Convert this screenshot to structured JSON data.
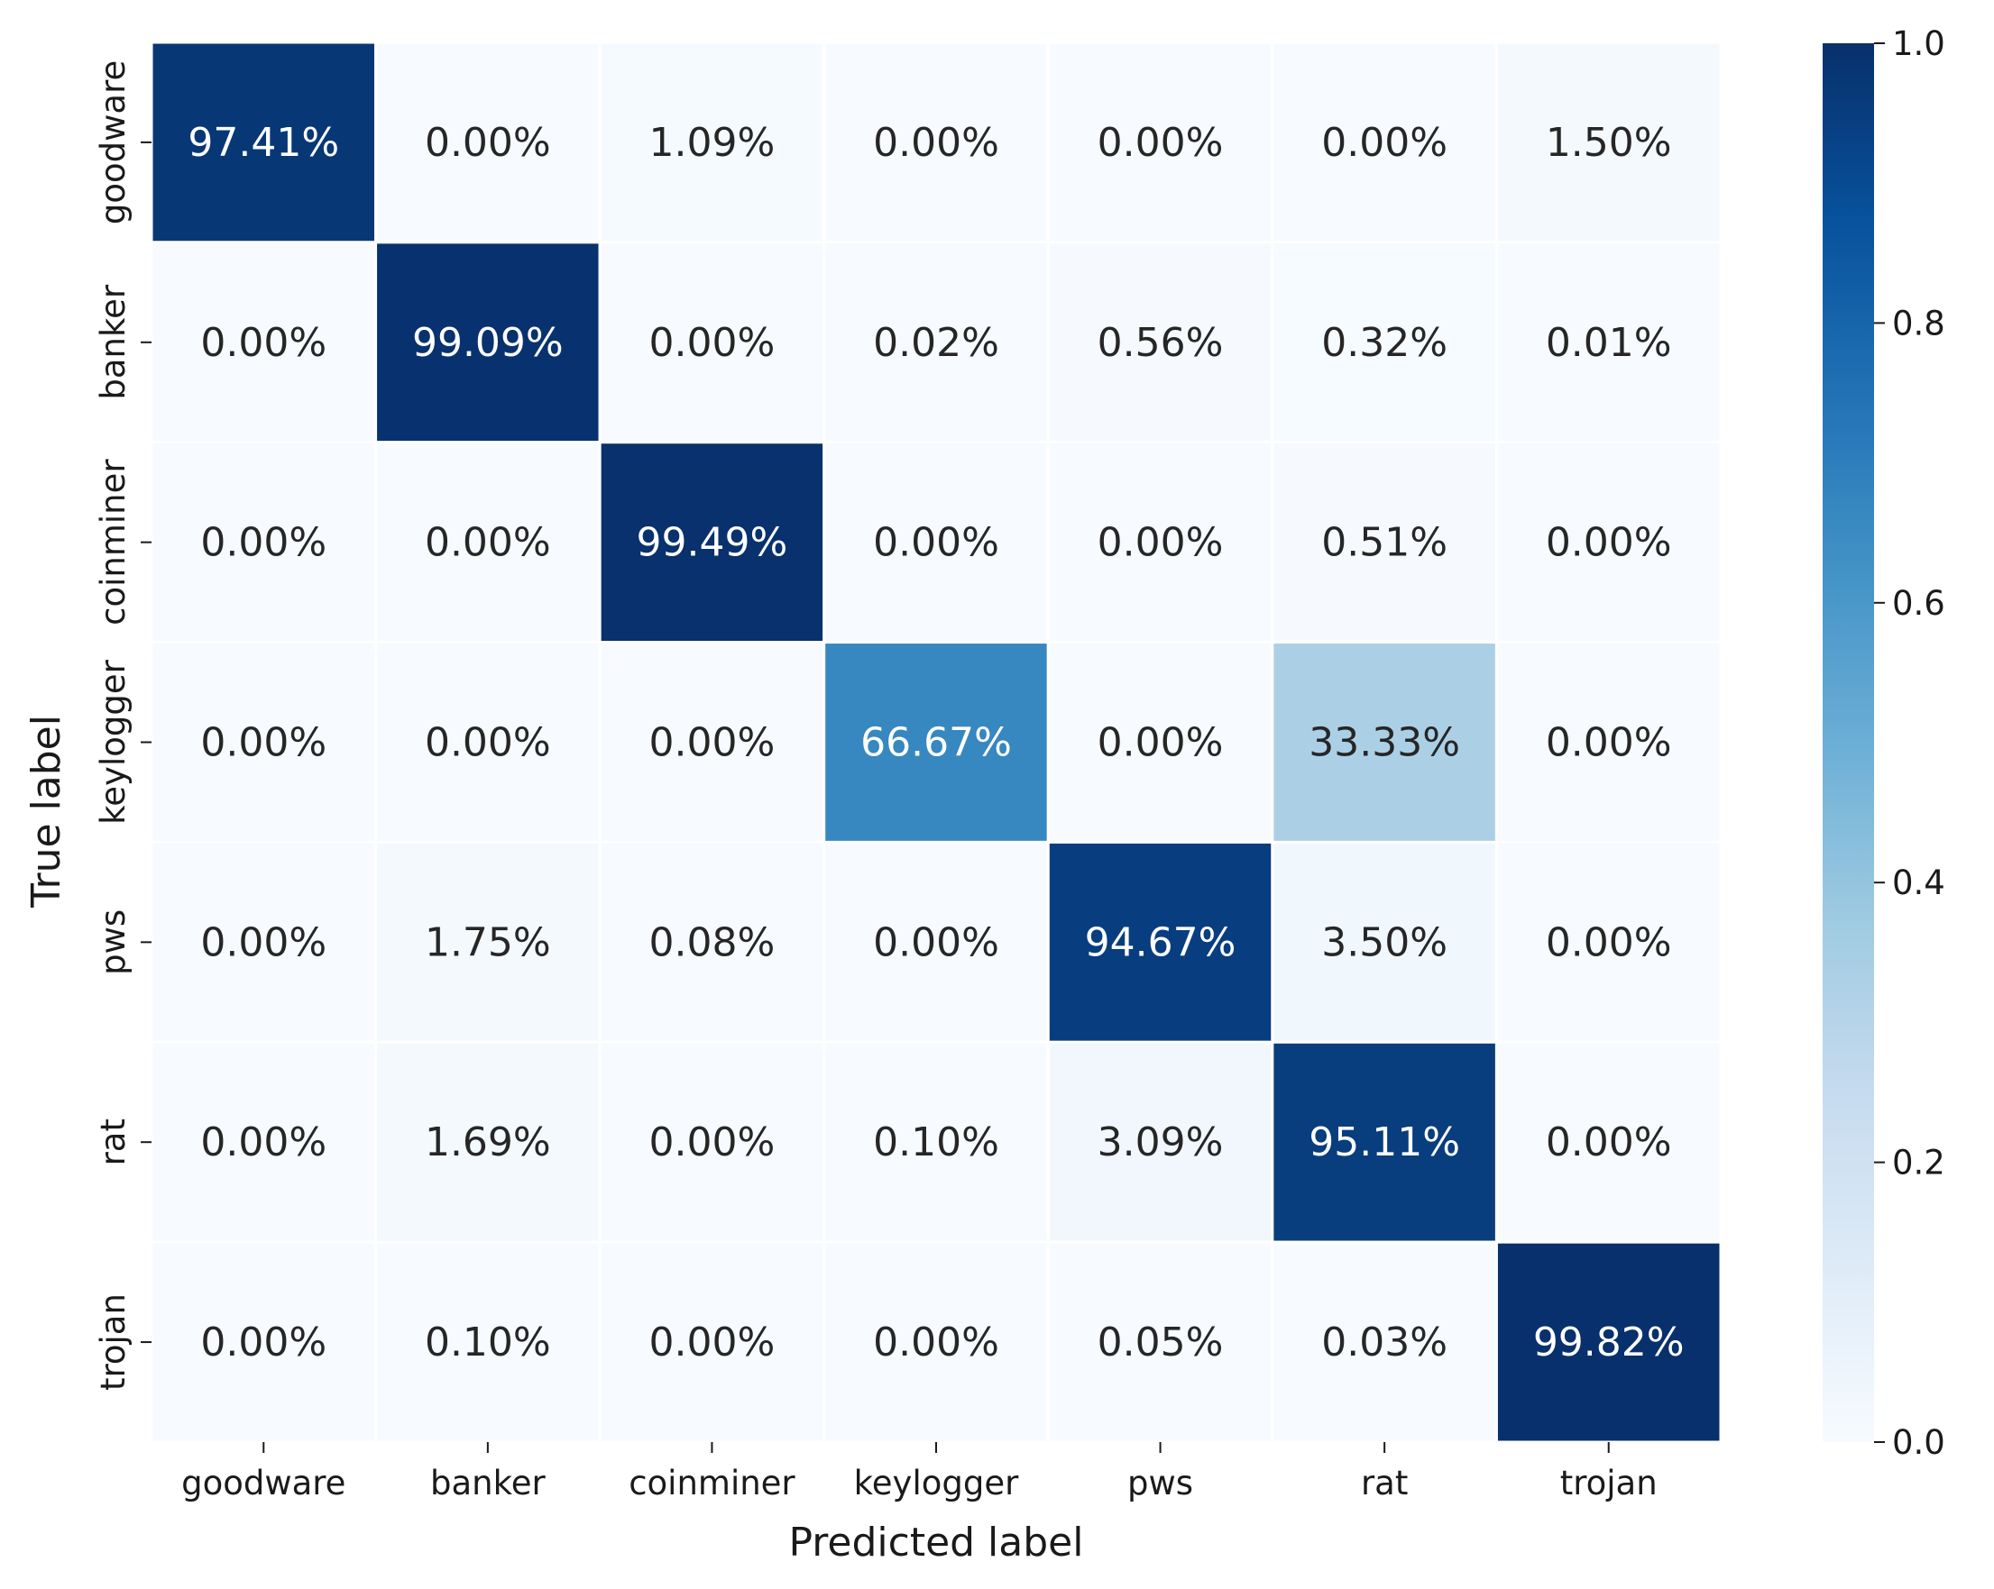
{
  "chart_data": {
    "type": "heatmap",
    "title": "",
    "xlabel": "Predicted label",
    "ylabel": "True label",
    "x_categories": [
      "goodware",
      "banker",
      "coinminer",
      "keylogger",
      "pws",
      "rat",
      "trojan"
    ],
    "y_categories": [
      "goodware",
      "banker",
      "coinminer",
      "keylogger",
      "pws",
      "rat",
      "trojan"
    ],
    "values": [
      [
        0.9741,
        0.0,
        0.0109,
        0.0,
        0.0,
        0.0,
        0.015
      ],
      [
        0.0,
        0.9909,
        0.0,
        0.0002,
        0.0056,
        0.0032,
        0.0001
      ],
      [
        0.0,
        0.0,
        0.9949,
        0.0,
        0.0,
        0.0051,
        0.0
      ],
      [
        0.0,
        0.0,
        0.0,
        0.6667,
        0.0,
        0.3333,
        0.0
      ],
      [
        0.0,
        0.0175,
        0.0008,
        0.0,
        0.9467,
        0.035,
        0.0
      ],
      [
        0.0,
        0.0169,
        0.0,
        0.001,
        0.0309,
        0.9511,
        0.0
      ],
      [
        0.0,
        0.001,
        0.0,
        0.0,
        0.0005,
        0.0003,
        0.9982
      ]
    ],
    "cell_labels": [
      [
        "97.41%",
        "0.00%",
        "1.09%",
        "0.00%",
        "0.00%",
        "0.00%",
        "1.50%"
      ],
      [
        "0.00%",
        "99.09%",
        "0.00%",
        "0.02%",
        "0.56%",
        "0.32%",
        "0.01%"
      ],
      [
        "0.00%",
        "0.00%",
        "99.49%",
        "0.00%",
        "0.00%",
        "0.51%",
        "0.00%"
      ],
      [
        "0.00%",
        "0.00%",
        "0.00%",
        "66.67%",
        "0.00%",
        "33.33%",
        "0.00%"
      ],
      [
        "0.00%",
        "1.75%",
        "0.08%",
        "0.00%",
        "94.67%",
        "3.50%",
        "0.00%"
      ],
      [
        "0.00%",
        "1.69%",
        "0.00%",
        "0.10%",
        "3.09%",
        "95.11%",
        "0.00%"
      ],
      [
        "0.00%",
        "0.10%",
        "0.00%",
        "0.00%",
        "0.05%",
        "0.03%",
        "99.82%"
      ]
    ],
    "colormap": "Blues",
    "colorbar": {
      "range": [
        0.0,
        1.0
      ],
      "ticks": [
        0.0,
        0.2,
        0.4,
        0.6,
        0.8,
        1.0
      ],
      "tick_labels": [
        "0.0",
        "0.2",
        "0.4",
        "0.6",
        "0.8",
        "1.0"
      ]
    },
    "grid": false,
    "cell_border_color": "#ffffff"
  }
}
